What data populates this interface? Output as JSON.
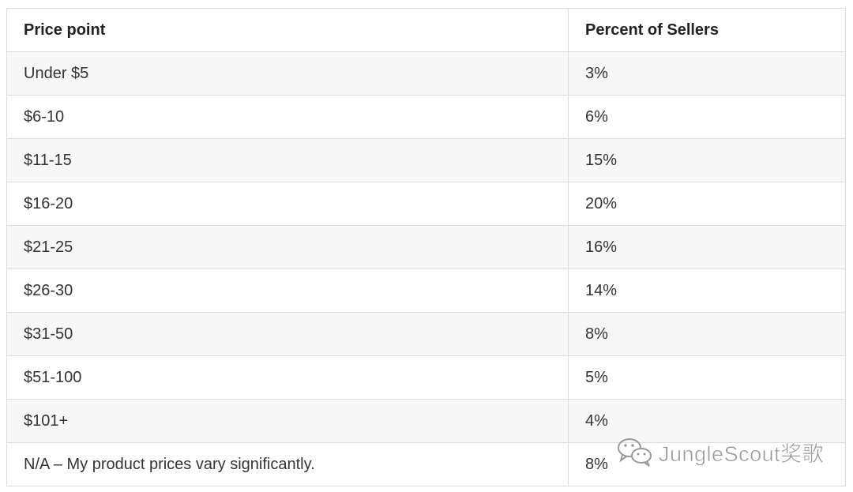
{
  "table": {
    "header": [
      "Price point",
      "Percent of Sellers"
    ],
    "rows": [
      [
        "Under $5",
        "3%"
      ],
      [
        "$6-10",
        "6%"
      ],
      [
        "$11-15",
        "15%"
      ],
      [
        "$16-20",
        "20%"
      ],
      [
        "$21-25",
        "16%"
      ],
      [
        "$26-30",
        "14%"
      ],
      [
        "$31-50",
        "8%"
      ],
      [
        "$51-100",
        "5%"
      ],
      [
        "$101+",
        "4%"
      ],
      [
        "N/A – My product prices vary significantly.",
        "8%"
      ]
    ]
  },
  "watermark": "JungleScout奖歌"
}
